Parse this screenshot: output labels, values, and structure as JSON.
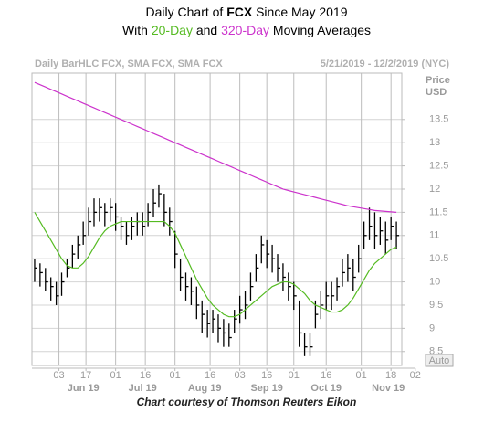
{
  "chart_data": {
    "type": "hlc",
    "title": [
      "Daily Chart of ",
      "FCX",
      " Since May 2019"
    ],
    "subtitle": [
      "With ",
      "20-Day",
      " and ",
      "320-Day",
      " Moving Averages"
    ],
    "header_left": "Daily BarHLC FCX, SMA FCX, SMA FCX",
    "header_right": "5/21/2019 - 12/2/2019 (NYC)",
    "y_axis_label": [
      "Price",
      "USD"
    ],
    "button": "Auto",
    "caption": "Chart courtesy of Thomson Reuters Eikon",
    "color": "#000000",
    "grid": true,
    "x": [
      0,
      2,
      4,
      6,
      8,
      10,
      12,
      14,
      16,
      18,
      20,
      22,
      24,
      26,
      28,
      30,
      32,
      34,
      36,
      38,
      40,
      42,
      44,
      46,
      48,
      50,
      52,
      54,
      56,
      58,
      60,
      62,
      64,
      66,
      68,
      70,
      72,
      74,
      76,
      78,
      80,
      82,
      84,
      86,
      88,
      90,
      92,
      94,
      96,
      98,
      100,
      102,
      104,
      106,
      108,
      110,
      112,
      114,
      116,
      118,
      120,
      122,
      124,
      126,
      128,
      130,
      132,
      134
    ],
    "high": [
      10.5,
      10.4,
      10.3,
      10.1,
      10.0,
      10.2,
      10.5,
      10.8,
      11.0,
      11.3,
      11.6,
      11.8,
      11.8,
      11.7,
      11.8,
      11.7,
      11.4,
      11.3,
      11.4,
      11.5,
      11.5,
      11.7,
      12.0,
      12.1,
      11.9,
      11.6,
      11.1,
      10.5,
      10.2,
      10.1,
      9.9,
      9.6,
      9.4,
      9.4,
      9.3,
      9.2,
      9.1,
      9.4,
      9.7,
      9.8,
      10.2,
      10.6,
      11.0,
      10.9,
      10.8,
      10.6,
      10.4,
      10.2,
      10.0,
      9.6,
      8.9,
      8.9,
      9.6,
      9.8,
      10.0,
      10.0,
      10.1,
      10.5,
      10.6,
      10.5,
      10.8,
      11.3,
      11.6,
      11.5,
      11.4,
      11.3,
      11.4,
      11.3
    ],
    "low": [
      10.0,
      9.9,
      9.8,
      9.6,
      9.5,
      9.7,
      10.1,
      10.3,
      10.5,
      10.8,
      11.0,
      11.2,
      11.3,
      11.2,
      11.3,
      11.1,
      10.9,
      10.8,
      10.9,
      11.0,
      11.0,
      11.2,
      11.4,
      11.6,
      11.2,
      11.0,
      10.3,
      9.8,
      9.6,
      9.5,
      9.2,
      8.9,
      8.8,
      8.9,
      8.7,
      8.6,
      8.6,
      8.9,
      9.1,
      9.2,
      9.6,
      10.0,
      10.4,
      10.3,
      10.2,
      10.0,
      9.8,
      9.6,
      9.4,
      8.6,
      8.4,
      8.4,
      9.0,
      9.2,
      9.4,
      9.4,
      9.6,
      9.9,
      10.0,
      9.8,
      10.2,
      10.7,
      10.9,
      10.7,
      10.8,
      10.6,
      10.9,
      10.7
    ],
    "close": [
      10.3,
      10.2,
      10.0,
      9.9,
      9.7,
      10.0,
      10.3,
      10.6,
      10.8,
      11.0,
      11.3,
      11.5,
      11.6,
      11.5,
      11.6,
      11.4,
      11.2,
      11.0,
      11.2,
      11.3,
      11.2,
      11.5,
      11.7,
      11.9,
      11.5,
      11.3,
      10.6,
      10.1,
      9.9,
      9.8,
      9.5,
      9.3,
      9.1,
      9.2,
      9.0,
      8.9,
      8.8,
      9.2,
      9.4,
      9.5,
      9.9,
      10.3,
      10.8,
      10.6,
      10.5,
      10.3,
      10.1,
      9.9,
      9.7,
      8.9,
      8.6,
      8.6,
      9.3,
      9.5,
      9.7,
      9.7,
      9.9,
      10.2,
      10.3,
      10.1,
      10.5,
      11.0,
      11.2,
      11.0,
      11.1,
      10.9,
      11.2,
      11.0
    ],
    "lines": [
      {
        "color": "#55bb22",
        "values": [
          11.5,
          11.3,
          11.1,
          10.9,
          10.7,
          10.5,
          10.35,
          10.3,
          10.3,
          10.4,
          10.55,
          10.75,
          10.95,
          11.1,
          11.2,
          11.25,
          11.3,
          11.3,
          11.3,
          11.3,
          11.3,
          11.3,
          11.3,
          11.3,
          11.3,
          11.2,
          11.05,
          10.8,
          10.55,
          10.3,
          10.05,
          9.85,
          9.65,
          9.5,
          9.4,
          9.3,
          9.25,
          9.25,
          9.3,
          9.4,
          9.5,
          9.6,
          9.7,
          9.8,
          9.9,
          9.95,
          10.0,
          10.0,
          9.95,
          9.85,
          9.75,
          9.6,
          9.5,
          9.45,
          9.4,
          9.35,
          9.35,
          9.4,
          9.5,
          9.65,
          9.85,
          10.05,
          10.25,
          10.4,
          10.5,
          10.6,
          10.7,
          10.75
        ]
      },
      {
        "color": "#cc33cc",
        "values": [
          14.3,
          14.25,
          14.2,
          14.15,
          14.1,
          14.05,
          14.0,
          13.95,
          13.9,
          13.85,
          13.8,
          13.75,
          13.7,
          13.65,
          13.6,
          13.55,
          13.5,
          13.45,
          13.4,
          13.35,
          13.3,
          13.25,
          13.2,
          13.15,
          13.1,
          13.05,
          13.0,
          12.95,
          12.9,
          12.85,
          12.8,
          12.75,
          12.7,
          12.65,
          12.6,
          12.55,
          12.5,
          12.45,
          12.4,
          12.35,
          12.3,
          12.25,
          12.2,
          12.15,
          12.1,
          12.05,
          12.0,
          11.97,
          11.94,
          11.91,
          11.88,
          11.85,
          11.82,
          11.79,
          11.76,
          11.73,
          11.7,
          11.67,
          11.64,
          11.62,
          11.6,
          11.58,
          11.56,
          11.54,
          11.53,
          11.52,
          11.51,
          11.5
        ]
      }
    ],
    "xlim": [
      -1,
      136
    ],
    "xticks": [
      {
        "value": 9,
        "label": "03"
      },
      {
        "value": 19,
        "label": "17"
      },
      {
        "value": 30,
        "label": "01"
      },
      {
        "value": 41,
        "label": "16"
      },
      {
        "value": 52,
        "label": "01"
      },
      {
        "value": 65,
        "label": "16"
      },
      {
        "value": 76,
        "label": "03"
      },
      {
        "value": 86,
        "label": "16"
      },
      {
        "value": 96,
        "label": "01"
      },
      {
        "value": 108,
        "label": "16"
      },
      {
        "value": 121,
        "label": "01"
      },
      {
        "value": 132,
        "label": "18"
      },
      {
        "value": 141,
        "label": "02"
      }
    ],
    "month_labels": [
      {
        "value": 18,
        "label": "Jun 19"
      },
      {
        "value": 40,
        "label": "Jul 19"
      },
      {
        "value": 63,
        "label": "Aug 19"
      },
      {
        "value": 86,
        "label": "Sep 19"
      },
      {
        "value": 108,
        "label": "Oct 19"
      },
      {
        "value": 131,
        "label": "Nov 19"
      }
    ],
    "ylim": [
      8.2,
      14.5
    ],
    "yticks": [
      8.5,
      9,
      9.5,
      10,
      10.5,
      11,
      11.5,
      12,
      12.5,
      13,
      13.5
    ]
  }
}
